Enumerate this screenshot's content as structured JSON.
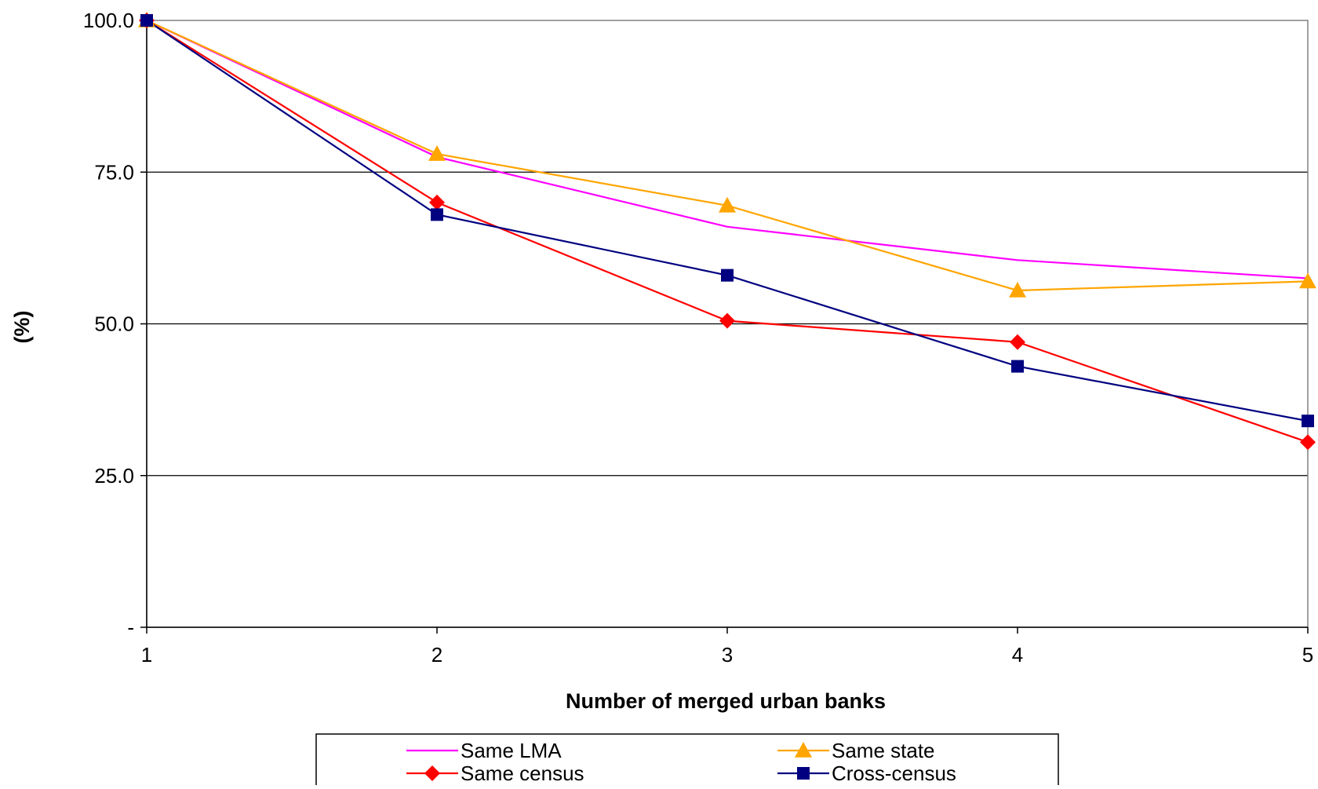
{
  "chart_data": {
    "type": "line",
    "title": "",
    "xlabel": "Number of merged urban banks",
    "ylabel": "(%)",
    "x": [
      1,
      2,
      3,
      4,
      5
    ],
    "x_tick_labels": [
      "1",
      "2",
      "3",
      "4",
      "5"
    ],
    "xlim": [
      1,
      5
    ],
    "ylim": [
      0,
      100
    ],
    "y_ticks": [
      0,
      25,
      50,
      75,
      100
    ],
    "y_tick_labels": [
      "-",
      "25.0",
      "50.0",
      "75.0",
      "100.0"
    ],
    "grid": "horizontal",
    "legend_position": "bottom",
    "series": [
      {
        "name": "Same LMA",
        "values": [
          100,
          77.5,
          66,
          60.5,
          57.5
        ],
        "color": "#ff00ff",
        "marker": "none"
      },
      {
        "name": "Same state",
        "values": [
          100,
          78,
          69.5,
          55.5,
          57
        ],
        "color": "#ffa500",
        "marker": "triangle"
      },
      {
        "name": "Same census",
        "values": [
          100,
          70,
          50.5,
          47,
          30.5
        ],
        "color": "#ff0000",
        "marker": "diamond"
      },
      {
        "name": "Cross-census",
        "values": [
          100,
          68,
          58,
          43,
          34
        ],
        "color": "#000080",
        "marker": "square"
      }
    ]
  }
}
